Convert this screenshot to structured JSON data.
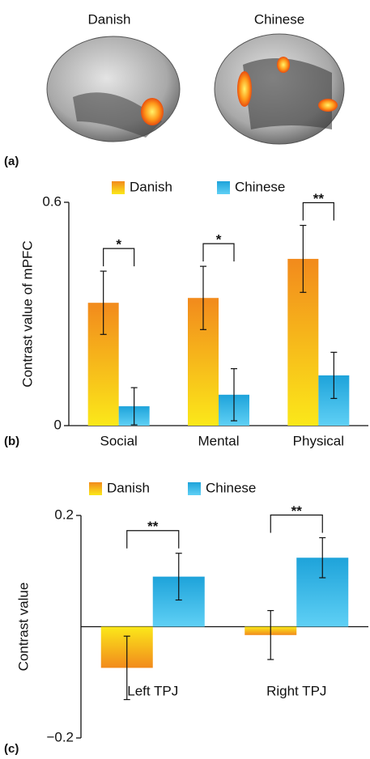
{
  "images": {
    "labels": [
      "Danish",
      "Chinese"
    ]
  },
  "panel_labels": [
    "(a)",
    "(b)",
    "(c)"
  ],
  "chart_data": [
    {
      "type": "bar",
      "y_label": "Contrast value of mPFC",
      "categories": [
        "Social",
        "Mental",
        "Physical"
      ],
      "series": [
        {
          "name": "Danish",
          "color": "#f28a1c",
          "values": [
            0.33,
            0.343,
            0.448
          ],
          "errors": [
            0.085,
            0.085,
            0.09
          ]
        },
        {
          "name": "Chinese",
          "color": "#1ea3da",
          "values": [
            0.052,
            0.083,
            0.135
          ],
          "errors": [
            0.05,
            0.07,
            0.062
          ]
        }
      ],
      "significance": [
        "*",
        "*",
        "**"
      ],
      "ylim": [
        0,
        0.6
      ],
      "yticks": [
        0,
        0.6
      ]
    },
    {
      "type": "bar",
      "y_label": "Contrast value",
      "categories": [
        "Left TPJ",
        "Right TPJ"
      ],
      "series": [
        {
          "name": "Danish",
          "color": "#f28a1c",
          "values": [
            -0.074,
            -0.015
          ],
          "errors": [
            0.057,
            0.044
          ]
        },
        {
          "name": "Chinese",
          "color": "#1ea3da",
          "values": [
            0.09,
            0.124
          ],
          "errors": [
            0.042,
            0.036
          ]
        }
      ],
      "significance": [
        "**",
        "**"
      ],
      "ylim": [
        -0.2,
        0.2
      ],
      "yticks": [
        {
          "value": -0.2,
          "label": "−0.2"
        },
        0.2
      ]
    }
  ]
}
